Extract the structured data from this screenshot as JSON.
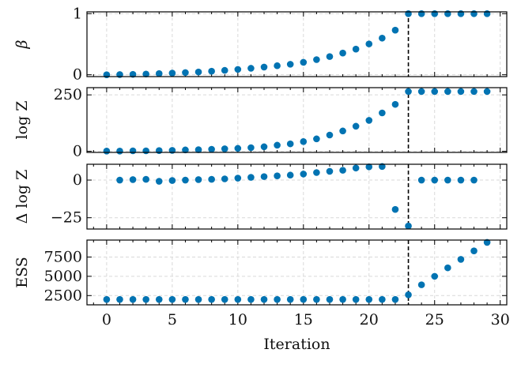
{
  "chart_data": [
    {
      "type": "scatter",
      "ylabel": "β",
      "xlim": [
        -1.5,
        30.5
      ],
      "ylim": [
        -0.03,
        1.03
      ],
      "yticks": [
        0,
        1
      ],
      "vline_x": 23,
      "x": [
        0,
        1,
        2,
        3,
        4,
        5,
        6,
        7,
        8,
        9,
        10,
        11,
        12,
        13,
        14,
        15,
        16,
        17,
        18,
        19,
        20,
        21,
        22,
        23,
        24,
        25,
        26,
        27,
        28,
        29
      ],
      "values": [
        0.0,
        0.003,
        0.007,
        0.012,
        0.019,
        0.027,
        0.036,
        0.046,
        0.058,
        0.072,
        0.088,
        0.106,
        0.126,
        0.148,
        0.172,
        0.204,
        0.248,
        0.298,
        0.355,
        0.42,
        0.505,
        0.6,
        0.73,
        1.0,
        1.0,
        1.0,
        1.0,
        1.0,
        1.0,
        1.0
      ]
    },
    {
      "type": "scatter",
      "ylabel": "log Z",
      "xlim": [
        -1.5,
        30.5
      ],
      "ylim": [
        -5,
        282
      ],
      "yticks": [
        0,
        250
      ],
      "vline_x": 23,
      "x": [
        0,
        1,
        2,
        3,
        4,
        5,
        6,
        7,
        8,
        9,
        10,
        11,
        12,
        13,
        14,
        15,
        16,
        17,
        18,
        19,
        20,
        21,
        22,
        23,
        24,
        25,
        26,
        27,
        28,
        29
      ],
      "values": [
        1,
        1,
        2,
        2,
        3,
        4,
        6,
        7,
        9,
        11,
        13,
        16,
        20,
        27,
        33,
        43,
        55,
        72,
        90,
        111,
        137,
        170,
        208,
        265,
        265,
        265,
        265,
        265,
        265,
        265
      ]
    },
    {
      "type": "scatter",
      "ylabel": "Δ log Z",
      "xlim": [
        -1.5,
        30.5
      ],
      "ylim": [
        -32.5,
        10.5
      ],
      "yticks": [
        -25,
        0
      ],
      "vline_x": 23,
      "x": [
        1,
        2,
        3,
        4,
        5,
        6,
        7,
        8,
        9,
        10,
        11,
        12,
        13,
        14,
        15,
        16,
        17,
        18,
        19,
        20,
        21,
        22,
        23,
        24,
        25,
        26,
        27,
        28
      ],
      "values": [
        0,
        0.3,
        0.5,
        -0.8,
        -0.3,
        0,
        0.3,
        0.5,
        0.8,
        1.3,
        1.8,
        2.3,
        2.8,
        3.3,
        4.0,
        5.0,
        5.8,
        6.5,
        8.0,
        8.8,
        9.0,
        -19.5,
        -30.5,
        0,
        0,
        0,
        0,
        0
      ]
    },
    {
      "type": "scatter",
      "ylabel": "ESS",
      "xlabel": "Iteration",
      "xlim": [
        -1.5,
        30.5
      ],
      "ylim": [
        1300,
        9700
      ],
      "yticks": [
        2500,
        5000,
        7500
      ],
      "vline_x": 23,
      "x": [
        0,
        1,
        2,
        3,
        4,
        5,
        6,
        7,
        8,
        9,
        10,
        11,
        12,
        13,
        14,
        15,
        16,
        17,
        18,
        19,
        20,
        21,
        22,
        23,
        24,
        25,
        26,
        27,
        28,
        29
      ],
      "values": [
        2000,
        2000,
        2000,
        2000,
        2000,
        2000,
        2000,
        2000,
        2000,
        2000,
        2000,
        2000,
        2000,
        2000,
        2000,
        2000,
        2000,
        2000,
        2000,
        2000,
        2000,
        2000,
        2000,
        2600,
        3900,
        5000,
        6100,
        7200,
        8300,
        9400
      ]
    }
  ],
  "xticks": [
    0,
    5,
    10,
    15,
    20,
    25,
    30
  ],
  "grid": true,
  "colors": {
    "marker": "#0173b2",
    "vline": "#000000",
    "grid": "#d9d9d9",
    "frame": "#000000"
  }
}
